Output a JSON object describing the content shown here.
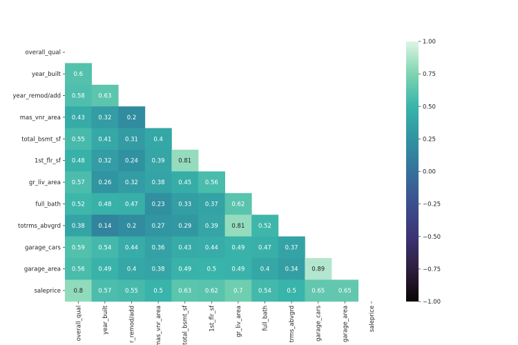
{
  "chart_data": {
    "type": "heatmap",
    "title": "",
    "variables": [
      "overall_qual",
      "year_built",
      "year_remod/add",
      "mas_vnr_area",
      "total_bsmt_sf",
      "1st_flr_sf",
      "gr_liv_area",
      "full_bath",
      "totrms_abvgrd",
      "garage_cars",
      "garage_area",
      "saleprice"
    ],
    "x_tick_labels": [
      "overall_qual",
      "year_built",
      "r_remod/add",
      "mas_vnr_area",
      "total_bsmt_sf",
      "1st_flr_sf",
      "gr_liv_area",
      "full_bath",
      "trms_abvgrd",
      "garage_cars",
      "garage_area",
      "saleprice"
    ],
    "mask": "upper-triangle",
    "values": [
      [],
      [
        0.6
      ],
      [
        0.58,
        0.63
      ],
      [
        0.43,
        0.32,
        0.2
      ],
      [
        0.55,
        0.41,
        0.31,
        0.4
      ],
      [
        0.48,
        0.32,
        0.24,
        0.39,
        0.81
      ],
      [
        0.57,
        0.26,
        0.32,
        0.38,
        0.45,
        0.56
      ],
      [
        0.52,
        0.48,
        0.47,
        0.23,
        0.33,
        0.37,
        0.62
      ],
      [
        0.38,
        0.14,
        0.2,
        0.27,
        0.29,
        0.39,
        0.81,
        0.52
      ],
      [
        0.59,
        0.54,
        0.44,
        0.36,
        0.43,
        0.44,
        0.49,
        0.47,
        0.37
      ],
      [
        0.56,
        0.49,
        0.4,
        0.38,
        0.49,
        0.5,
        0.49,
        0.4,
        0.34,
        0.89
      ],
      [
        0.8,
        0.57,
        0.55,
        0.5,
        0.63,
        0.62,
        0.7,
        0.54,
        0.5,
        0.65,
        0.65
      ]
    ],
    "colormap": "mako",
    "colorbar": {
      "range": [
        -1.0,
        1.0
      ],
      "ticks": [
        "1.00",
        "0.75",
        "0.50",
        "0.25",
        "0.00",
        "−0.25",
        "−0.50",
        "−0.75",
        "−1.00"
      ],
      "tick_values": [
        1.0,
        0.75,
        0.5,
        0.25,
        0.0,
        -0.25,
        -0.5,
        -0.75,
        -1.0
      ]
    }
  }
}
